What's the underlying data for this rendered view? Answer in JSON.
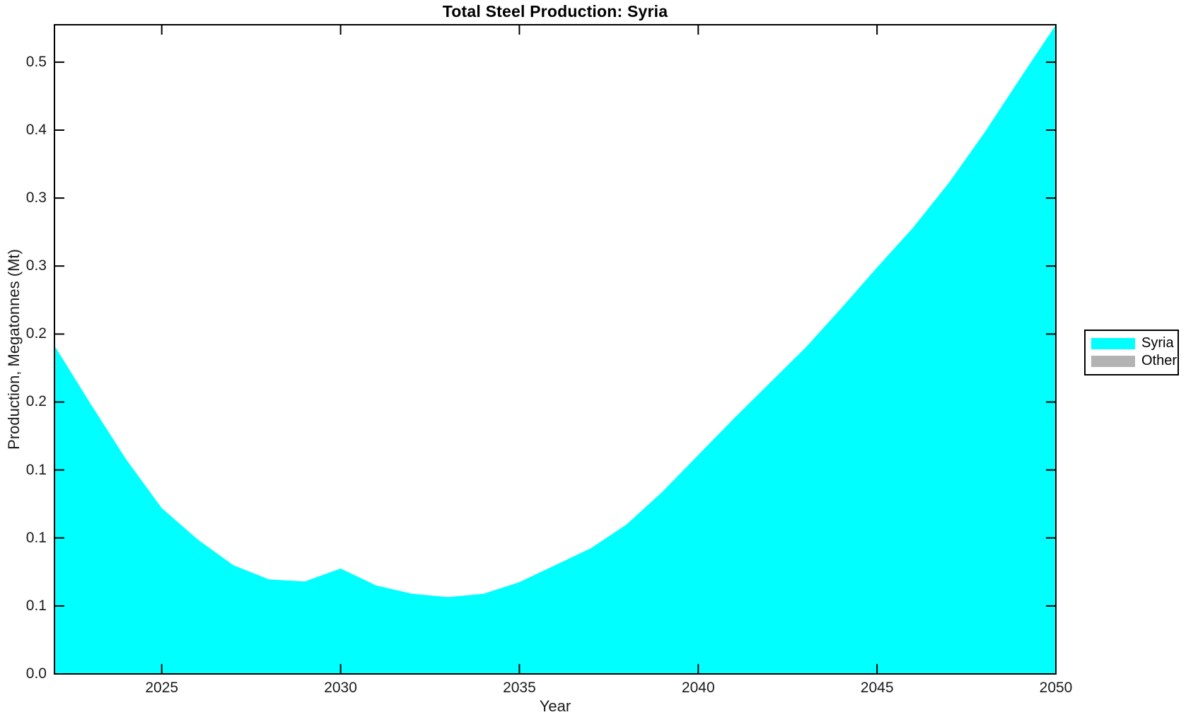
{
  "figure": {
    "background_color": "#FFFFFF",
    "frame_color": "#000000"
  },
  "chart_data": {
    "type": "area",
    "title": "Total Steel Production: Syria",
    "xlabel": "Year",
    "ylabel": "Production, Megatonnes (Mt)",
    "xlim": [
      2022,
      2050
    ],
    "ylim": [
      0,
      0.4775
    ],
    "grid": false,
    "tick_style": "inward-all-four-sides",
    "x_ticks": {
      "values": [
        2025,
        2030,
        2035,
        2040,
        2045,
        2050
      ],
      "labels": [
        "2025",
        "2030",
        "2035",
        "2040",
        "2045",
        "2050"
      ]
    },
    "y_ticks": {
      "values": [
        0.0,
        0.05,
        0.1,
        0.15,
        0.2,
        0.25,
        0.3,
        0.35,
        0.4,
        0.45
      ],
      "labels": [
        "0.0",
        "0.1",
        "0.1",
        "0.1",
        "0.2",
        "0.2",
        "0.3",
        "0.3",
        "0.4",
        "0.5"
      ]
    },
    "legend": {
      "position": "outside-right",
      "entries": [
        {
          "label": "Syria",
          "color": "#00FFFF"
        },
        {
          "label": "Other",
          "color": "#B3B3B3"
        }
      ]
    },
    "series": [
      {
        "name": "Syria",
        "color": "#00FFFF",
        "x": [
          2022,
          2023,
          2024,
          2025,
          2026,
          2027,
          2028,
          2029,
          2030,
          2031,
          2032,
          2033,
          2034,
          2035,
          2036,
          2037,
          2038,
          2039,
          2040,
          2041,
          2042,
          2043,
          2044,
          2045,
          2046,
          2047,
          2048,
          2049,
          2050
        ],
        "values": [
          0.2415,
          0.199,
          0.158,
          0.122,
          0.099,
          0.08,
          0.0695,
          0.068,
          0.0775,
          0.065,
          0.059,
          0.0565,
          0.059,
          0.0675,
          0.08,
          0.0925,
          0.11,
          0.134,
          0.161,
          0.188,
          0.214,
          0.24,
          0.269,
          0.299,
          0.328,
          0.361,
          0.398,
          0.438,
          0.4775
        ]
      },
      {
        "name": "Other",
        "color": "#B3B3B3",
        "x": [],
        "values": []
      }
    ]
  }
}
